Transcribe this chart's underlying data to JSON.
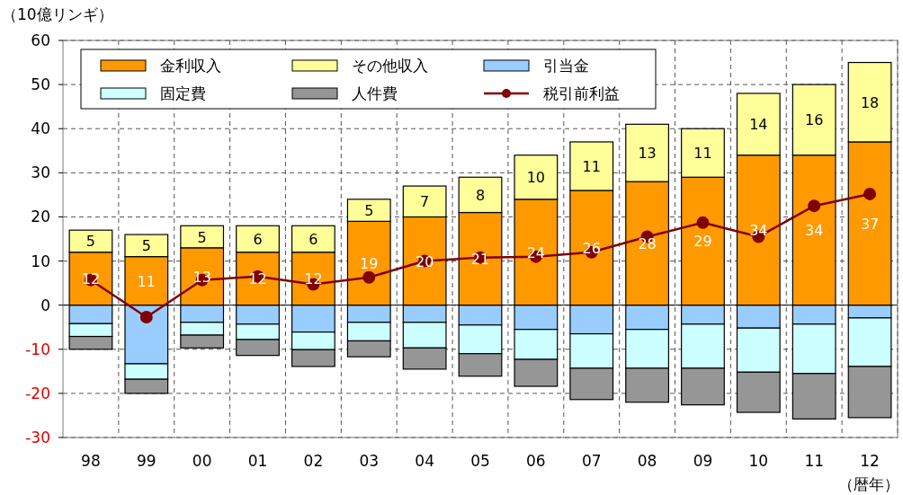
{
  "chart_data": {
    "type": "bar",
    "stacked": true,
    "ylabel": "（10億リンギ）",
    "xlabel": "（暦年）",
    "categories": [
      "98",
      "99",
      "00",
      "01",
      "02",
      "03",
      "04",
      "05",
      "06",
      "07",
      "08",
      "09",
      "10",
      "11",
      "12"
    ],
    "ylim": [
      -30,
      60
    ],
    "yticks": [
      -30,
      -20,
      -10,
      0,
      10,
      20,
      30,
      40,
      50,
      60
    ],
    "grid": true,
    "legend": "top left",
    "series": [
      {
        "name": "金利収入",
        "color": "#ff9900",
        "values": [
          12,
          11,
          13,
          12,
          12,
          19,
          20,
          21,
          24,
          26,
          28,
          29,
          34,
          34,
          37
        ],
        "value_labels": [
          "12",
          "11",
          "13",
          "12",
          "12",
          "19",
          "20",
          "21",
          "24",
          "26",
          "28",
          "29",
          "34",
          "34",
          "37"
        ]
      },
      {
        "name": "その他収入",
        "color": "#ffff99",
        "values": [
          5,
          5,
          5,
          6,
          6,
          5,
          7,
          8,
          10,
          11,
          13,
          11,
          14,
          16,
          18
        ],
        "value_labels": [
          "5",
          "5",
          "5",
          "6",
          "6",
          "5",
          "7",
          "8",
          "10",
          "11",
          "13",
          "11",
          "14",
          "16",
          "18"
        ]
      },
      {
        "name": "引当金",
        "color": "#99ccff",
        "values": [
          -4.2,
          -13.3,
          -3.9,
          -4.3,
          -6.1,
          -3.9,
          -3.9,
          -4.5,
          -5.5,
          -6.5,
          -5.5,
          -4.3,
          -5.2,
          -4.3,
          -2.9
        ]
      },
      {
        "name": "固定費",
        "color": "#ccffff",
        "values": [
          -2.9,
          -3.5,
          -2.9,
          -3.5,
          -4.0,
          -4.2,
          -5.8,
          -6.5,
          -6.8,
          -7.8,
          -8.8,
          -10.0,
          -10.0,
          -11.2,
          -11.0
        ]
      },
      {
        "name": "人件費",
        "color": "#969696",
        "values": [
          -2.9,
          -3.2,
          -2.9,
          -3.6,
          -3.8,
          -3.6,
          -4.8,
          -5.1,
          -6.1,
          -7.1,
          -7.7,
          -8.3,
          -9.1,
          -10.3,
          -11.6
        ]
      },
      {
        "name": "税引前利益",
        "type": "line",
        "color": "#800000",
        "marker": "circle",
        "values": [
          5.7,
          -2.7,
          5.7,
          6.5,
          4.7,
          6.3,
          10.0,
          10.8,
          11.0,
          12.0,
          15.5,
          18.7,
          15.5,
          22.5,
          25.2
        ]
      }
    ]
  }
}
